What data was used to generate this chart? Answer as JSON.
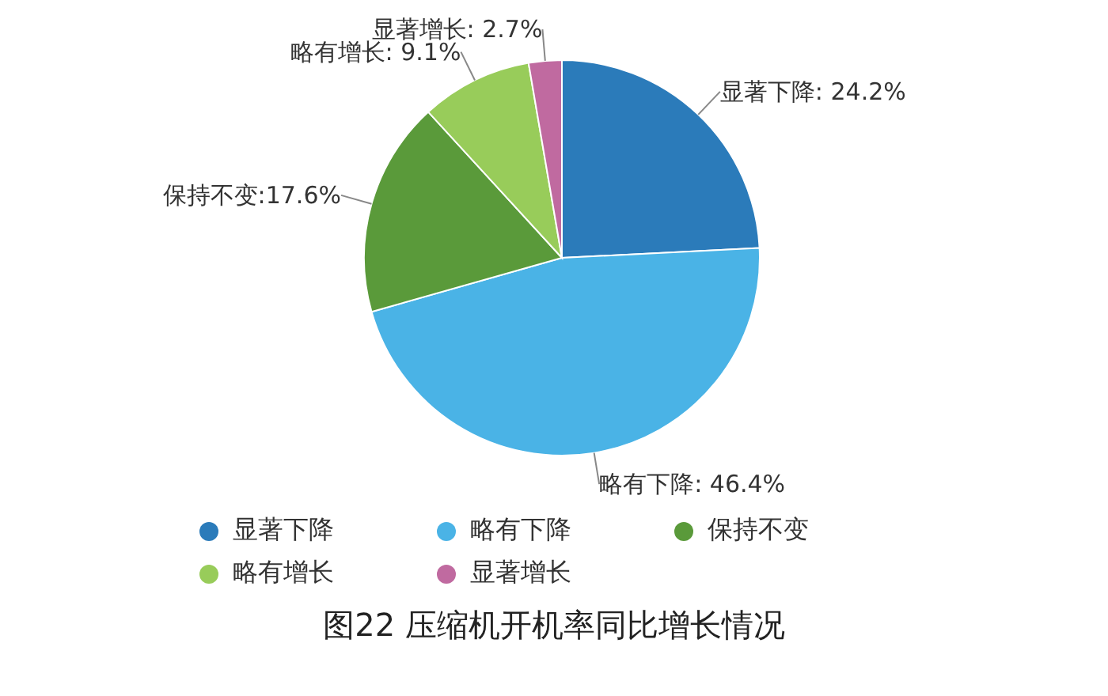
{
  "chart_data": {
    "type": "pie",
    "title": "图22 压缩机开机率同比增长情况",
    "categories": [
      "显著下降",
      "略有下降",
      "保持不变",
      "略有增长",
      "显著增长"
    ],
    "values": [
      24.2,
      46.4,
      17.6,
      9.1,
      2.7
    ],
    "colors": [
      "#2b7bba",
      "#4ab3e6",
      "#5a9a3a",
      "#98cc5a",
      "#c06aa0"
    ],
    "value_labels": [
      "显著下降: 24.2%",
      "略有下降: 46.4%",
      "保持不变:17.6%",
      "略有增长: 9.1%",
      "显著增长: 2.7%"
    ],
    "legend": "bottom"
  }
}
